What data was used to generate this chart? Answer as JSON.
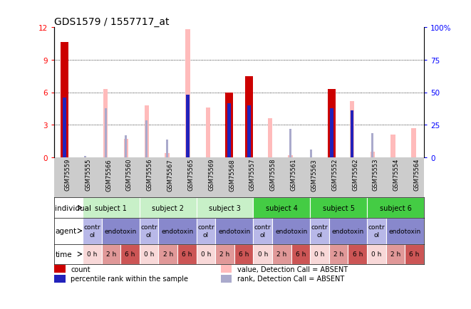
{
  "title": "GDS1579 / 1557717_at",
  "samples": [
    "GSM75559",
    "GSM75555",
    "GSM75566",
    "GSM75560",
    "GSM75556",
    "GSM75567",
    "GSM75565",
    "GSM75569",
    "GSM75568",
    "GSM75557",
    "GSM75558",
    "GSM75561",
    "GSM75563",
    "GSM75552",
    "GSM75562",
    "GSM75553",
    "GSM75554",
    "GSM75564"
  ],
  "count_values": [
    10.6,
    0.05,
    0.05,
    0.05,
    0.05,
    0.05,
    0.05,
    0.05,
    6.0,
    7.5,
    0.05,
    0.05,
    0.05,
    6.3,
    0.05,
    0.05,
    0.05,
    0.05
  ],
  "percentile_values": [
    5.5,
    0.05,
    0.05,
    0.05,
    0.05,
    0.05,
    5.8,
    0.05,
    5.0,
    4.8,
    0.05,
    0.05,
    0.05,
    4.5,
    4.3,
    0.05,
    0.05,
    0.05
  ],
  "absent_value_bars": [
    0.0,
    0.05,
    6.3,
    1.7,
    4.8,
    0.4,
    11.8,
    4.6,
    5.0,
    0.0,
    3.6,
    0.2,
    0.0,
    0.0,
    5.2,
    0.5,
    2.1,
    2.7
  ],
  "absent_rank_bars": [
    0.0,
    0.1,
    4.5,
    2.0,
    3.4,
    1.6,
    0.0,
    0.0,
    0.0,
    4.5,
    0.0,
    2.6,
    0.7,
    0.0,
    0.0,
    2.2,
    0.0,
    0.0
  ],
  "ylim_left": [
    0,
    12
  ],
  "ylim_right": [
    0,
    100
  ],
  "yticks_left": [
    0,
    3,
    6,
    9,
    12
  ],
  "yticks_right": [
    0,
    25,
    50,
    75,
    100
  ],
  "subjects": [
    {
      "label": "subject 1",
      "span": [
        0,
        3
      ],
      "color": "#c8f0c8"
    },
    {
      "label": "subject 2",
      "span": [
        3,
        6
      ],
      "color": "#c8f0c8"
    },
    {
      "label": "subject 3",
      "span": [
        6,
        9
      ],
      "color": "#c8f0c8"
    },
    {
      "label": "subject 4",
      "span": [
        9,
        12
      ],
      "color": "#44cc44"
    },
    {
      "label": "subject 5",
      "span": [
        12,
        15
      ],
      "color": "#44cc44"
    },
    {
      "label": "subject 6",
      "span": [
        15,
        18
      ],
      "color": "#44cc44"
    }
  ],
  "agents": [
    {
      "label": "contr\nol",
      "span": [
        0,
        1
      ],
      "color": "#b8b8e8"
    },
    {
      "label": "endotoxin",
      "span": [
        1,
        3
      ],
      "color": "#8888cc"
    },
    {
      "label": "contr\nol",
      "span": [
        3,
        4
      ],
      "color": "#b8b8e8"
    },
    {
      "label": "endotoxin",
      "span": [
        4,
        6
      ],
      "color": "#8888cc"
    },
    {
      "label": "contr\nol",
      "span": [
        6,
        7
      ],
      "color": "#b8b8e8"
    },
    {
      "label": "endotoxin",
      "span": [
        7,
        9
      ],
      "color": "#8888cc"
    },
    {
      "label": "contr\nol",
      "span": [
        9,
        10
      ],
      "color": "#b8b8e8"
    },
    {
      "label": "endotoxin",
      "span": [
        10,
        12
      ],
      "color": "#8888cc"
    },
    {
      "label": "contr\nol",
      "span": [
        12,
        13
      ],
      "color": "#b8b8e8"
    },
    {
      "label": "endotoxin",
      "span": [
        13,
        15
      ],
      "color": "#8888cc"
    },
    {
      "label": "contr\nol",
      "span": [
        15,
        16
      ],
      "color": "#b8b8e8"
    },
    {
      "label": "endotoxin",
      "span": [
        16,
        18
      ],
      "color": "#8888cc"
    }
  ],
  "times": [
    {
      "label": "0 h",
      "color": "#f8d8d8"
    },
    {
      "label": "2 h",
      "color": "#e09898"
    },
    {
      "label": "6 h",
      "color": "#cc5555"
    },
    {
      "label": "0 h",
      "color": "#f8d8d8"
    },
    {
      "label": "2 h",
      "color": "#e09898"
    },
    {
      "label": "6 h",
      "color": "#cc5555"
    },
    {
      "label": "0 h",
      "color": "#f8d8d8"
    },
    {
      "label": "2 h",
      "color": "#e09898"
    },
    {
      "label": "6 h",
      "color": "#cc5555"
    },
    {
      "label": "0 h",
      "color": "#f8d8d8"
    },
    {
      "label": "2 h",
      "color": "#e09898"
    },
    {
      "label": "6 h",
      "color": "#cc5555"
    },
    {
      "label": "0 h",
      "color": "#f8d8d8"
    },
    {
      "label": "2 h",
      "color": "#e09898"
    },
    {
      "label": "6 h",
      "color": "#cc5555"
    },
    {
      "label": "0 h",
      "color": "#f8d8d8"
    },
    {
      "label": "2 h",
      "color": "#e09898"
    },
    {
      "label": "6 h",
      "color": "#cc5555"
    }
  ],
  "count_color": "#cc0000",
  "percentile_color": "#2222bb",
  "absent_value_color": "#ffbbbb",
  "absent_rank_color": "#aaaacc",
  "tick_label_area_color": "#cccccc",
  "title_fontsize": 10,
  "legend_items": [
    {
      "color": "#cc0000",
      "label": "count"
    },
    {
      "color": "#2222bb",
      "label": "percentile rank within the sample"
    },
    {
      "color": "#ffbbbb",
      "label": "value, Detection Call = ABSENT"
    },
    {
      "color": "#aaaacc",
      "label": "rank, Detection Call = ABSENT"
    }
  ]
}
